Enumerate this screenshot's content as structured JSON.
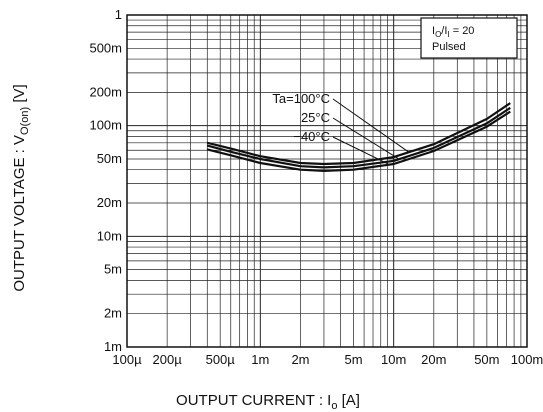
{
  "chart_data": {
    "type": "line",
    "xscale": "log",
    "yscale": "log",
    "xlim": [
      0.0001,
      0.1
    ],
    "ylim": [
      0.001,
      1
    ],
    "x_ticks": [
      {
        "value": 0.0001,
        "label": "100µ"
      },
      {
        "value": 0.0002,
        "label": "200µ"
      },
      {
        "value": 0.0005,
        "label": "500µ"
      },
      {
        "value": 0.001,
        "label": "1m"
      },
      {
        "value": 0.002,
        "label": "2m"
      },
      {
        "value": 0.005,
        "label": "5m"
      },
      {
        "value": 0.01,
        "label": "10m"
      },
      {
        "value": 0.02,
        "label": "20m"
      },
      {
        "value": 0.05,
        "label": "50m"
      },
      {
        "value": 0.1,
        "label": "100m"
      }
    ],
    "y_ticks": [
      {
        "value": 1,
        "label": "1"
      },
      {
        "value": 0.5,
        "label": "500m"
      },
      {
        "value": 0.2,
        "label": "200m"
      },
      {
        "value": 0.1,
        "label": "100m"
      },
      {
        "value": 0.05,
        "label": "50m"
      },
      {
        "value": 0.02,
        "label": "20m"
      },
      {
        "value": 0.01,
        "label": "10m"
      },
      {
        "value": 0.005,
        "label": "5m"
      },
      {
        "value": 0.002,
        "label": "2m"
      },
      {
        "value": 0.001,
        "label": "1m"
      }
    ],
    "xlabel": {
      "main": "OUTPUT CURRENT : I",
      "sub": "o",
      "unit": " [A]"
    },
    "ylabel": {
      "main": "OUTPUT VOLTAGE : V",
      "sub": "O(on)",
      "unit": " [V]"
    },
    "grid": true,
    "condition_box": {
      "line1_main": "I",
      "line1_sub1": "O",
      "line1_mid": "/I",
      "line1_sub2": "I",
      "line1_tail": " = 20",
      "line2": "Pulsed"
    },
    "series": [
      {
        "name": "Ta=100°C",
        "x": [
          0.0004,
          0.0006,
          0.001,
          0.002,
          0.003,
          0.005,
          0.01,
          0.02,
          0.05,
          0.075
        ],
        "y": [
          0.07,
          0.062,
          0.053,
          0.046,
          0.045,
          0.046,
          0.052,
          0.068,
          0.115,
          0.16
        ]
      },
      {
        "name": "25°C",
        "x": [
          0.0004,
          0.0006,
          0.001,
          0.002,
          0.003,
          0.005,
          0.01,
          0.02,
          0.05,
          0.075
        ],
        "y": [
          0.066,
          0.058,
          0.05,
          0.043,
          0.042,
          0.043,
          0.048,
          0.063,
          0.105,
          0.145
        ]
      },
      {
        "name": "−40°C",
        "x": [
          0.0004,
          0.0006,
          0.001,
          0.002,
          0.003,
          0.005,
          0.01,
          0.02,
          0.05,
          0.075
        ],
        "y": [
          0.061,
          0.054,
          0.046,
          0.04,
          0.039,
          0.04,
          0.045,
          0.059,
          0.098,
          0.134
        ]
      }
    ],
    "annotations": [
      "Ta=100°C",
      "25°C",
      "−40°C"
    ]
  }
}
